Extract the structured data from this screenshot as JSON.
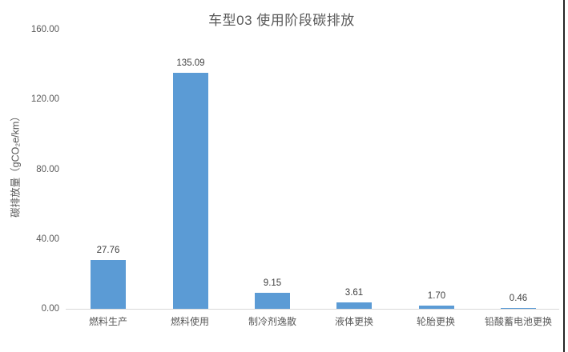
{
  "chart_data": {
    "type": "bar",
    "title": "车型03 使用阶段碳排放",
    "ylabel": "碳排放量（gCO₂e/km）",
    "xlabel": "",
    "categories": [
      "燃料生产",
      "燃料使用",
      "制冷剂逸散",
      "液体更换",
      "轮胎更换",
      "铅酸蓄电池更换"
    ],
    "values": [
      27.76,
      135.09,
      9.15,
      3.61,
      1.7,
      0.46
    ],
    "data_labels": [
      "27.76",
      "135.09",
      "9.15",
      "3.61",
      "1.70",
      "0.46"
    ],
    "ylim": [
      0,
      160
    ],
    "ytick_interval": 40,
    "ytick_labels": [
      "0.00",
      "40.00",
      "80.00",
      "120.00",
      "160.00"
    ],
    "grid": false,
    "legend": "none",
    "bar_color": "#5b9bd5"
  },
  "colors": {
    "bar": "#5b9bd5",
    "title_text": "#595959",
    "axis_text": "#595959",
    "data_label_text": "#404040",
    "axis_line": "#d9d9d9",
    "right_edge_line": "#262626",
    "background": "#ffffff"
  }
}
